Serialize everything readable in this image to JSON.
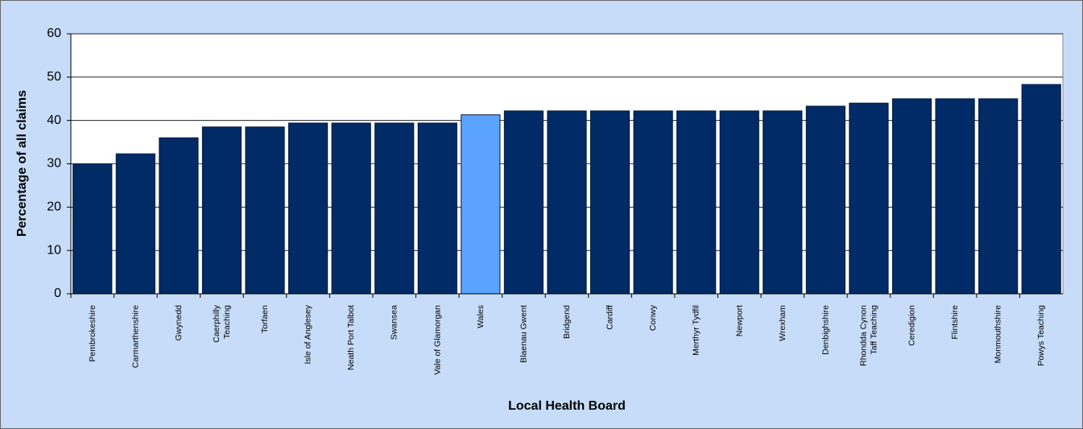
{
  "chart_data": {
    "type": "bar",
    "xlabel": "Local Health Board",
    "ylabel": "Percentage of all claims",
    "categories": [
      "Pembrokeshire",
      "Carmarthenshire",
      "Gwynedd",
      "Caerphilly Teaching",
      "Torfaen",
      "Isle of Anglesey",
      "Neath Port Talbot",
      "Swansea",
      "Vale of Glamorgan",
      "Wales",
      "Blaenau Gwent",
      "Bridgend",
      "Cardiff",
      "Conwy",
      "Merthyr Tydfil",
      "Newport",
      "Wrexham",
      "Denbighshire",
      "Rhondda Cynon Taff Teaching",
      "Ceredigion",
      "Flintshire",
      "Monmouthshire",
      "Powys Teaching"
    ],
    "values": [
      30,
      32.3,
      36,
      38.5,
      38.5,
      39.4,
      39.4,
      39.4,
      39.4,
      41.3,
      42.2,
      42.2,
      42.2,
      42.2,
      42.2,
      42.2,
      42.2,
      43.3,
      44,
      45,
      45,
      45,
      48.3
    ],
    "colors": [
      "#002b66",
      "#002b66",
      "#002b66",
      "#002b66",
      "#002b66",
      "#002b66",
      "#002b66",
      "#002b66",
      "#002b66",
      "#5ba3ff",
      "#002b66",
      "#002b66",
      "#002b66",
      "#002b66",
      "#002b66",
      "#002b66",
      "#002b66",
      "#002b66",
      "#002b66",
      "#002b66",
      "#002b66",
      "#002b66",
      "#002b66"
    ],
    "ylim": [
      0,
      60
    ],
    "yticks": [
      0,
      10,
      20,
      30,
      40,
      50,
      60
    ],
    "grid": true
  }
}
